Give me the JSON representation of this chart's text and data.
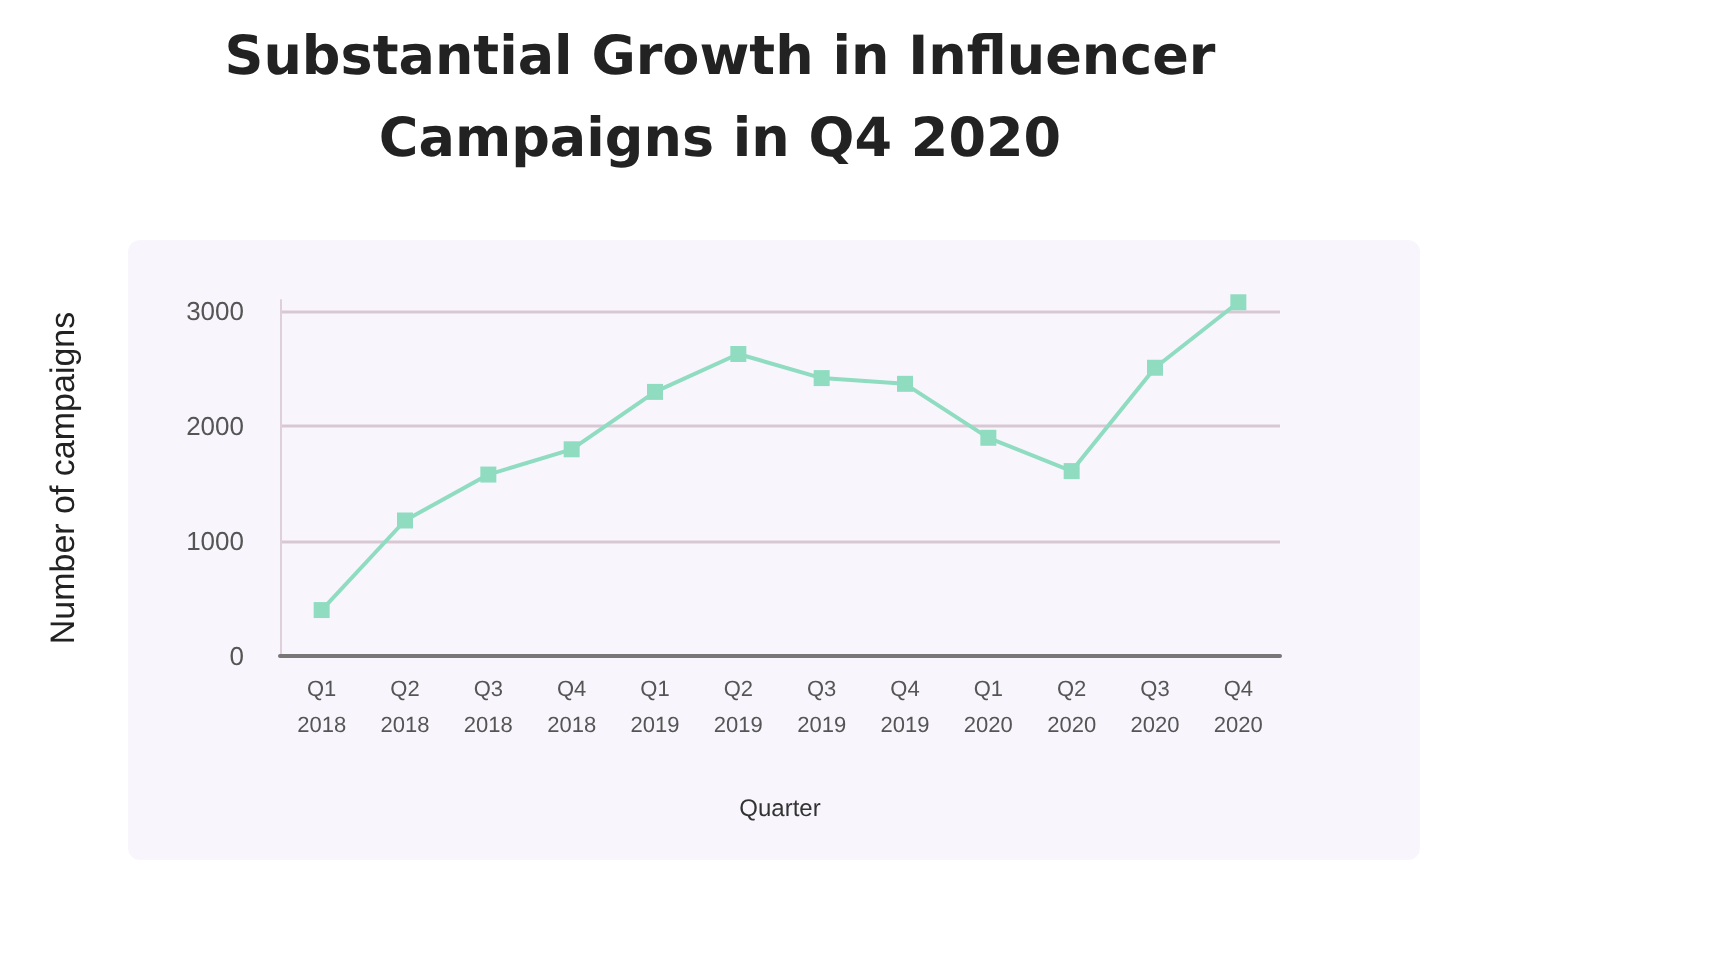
{
  "chart_data": {
    "type": "line",
    "title": "Substantial Growth in Influencer\nCampaigns in Q4 2020",
    "xlabel": "Quarter",
    "ylabel": "Number of campaigns",
    "categories": [
      "Q1\n2018",
      "Q2\n2018",
      "Q3\n2018",
      "Q4\n2018",
      "Q1\n2019",
      "Q2\n2019",
      "Q3\n2019",
      "Q4\n2019",
      "Q1\n2020",
      "Q2\n2020",
      "Q3\n2020",
      "Q4\n2020"
    ],
    "series": [
      {
        "color": "#8fdcc0",
        "values": [
          400,
          1180,
          1580,
          1800,
          2300,
          2630,
          2420,
          2370,
          1900,
          1610,
          2510,
          3080
        ]
      }
    ],
    "ylim": [
      0,
      3100
    ],
    "yticks": [
      0,
      1000,
      2000,
      3000
    ],
    "grid": "y",
    "marker": "square",
    "line_style": "solid"
  }
}
